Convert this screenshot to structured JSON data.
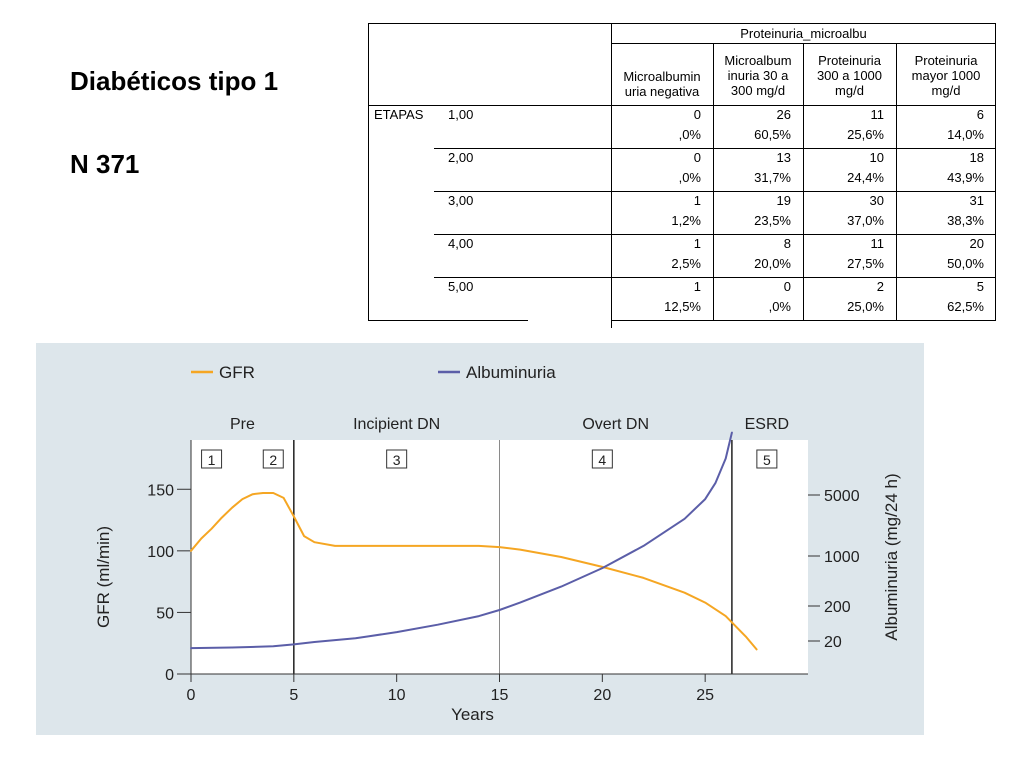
{
  "title": {
    "line1": "Diabéticos tipo 1",
    "line2": "N 371"
  },
  "table": {
    "group_header": "Proteinuria_microalbu",
    "columns": [
      "Microalbumin\nuria negativa",
      "Microalbum\ninuria 30 a\n300 mg/d",
      "Proteinuria\n300 a 1000\nmg/d",
      "Proteinuria\nmayor 1000\nmg/d"
    ],
    "row_var": "ETAPAS",
    "rows": [
      {
        "stage": "1,00",
        "counts": [
          "0",
          "26",
          "11",
          "6"
        ],
        "percents": [
          ",0%",
          "60,5%",
          "25,6%",
          "14,0%"
        ]
      },
      {
        "stage": "2,00",
        "counts": [
          "0",
          "13",
          "10",
          "18"
        ],
        "percents": [
          ",0%",
          "31,7%",
          "24,4%",
          "43,9%"
        ]
      },
      {
        "stage": "3,00",
        "counts": [
          "1",
          "19",
          "30",
          "31"
        ],
        "percents": [
          "1,2%",
          "23,5%",
          "37,0%",
          "38,3%"
        ]
      },
      {
        "stage": "4,00",
        "counts": [
          "1",
          "8",
          "11",
          "20"
        ],
        "percents": [
          "2,5%",
          "20,0%",
          "27,5%",
          "50,0%"
        ]
      },
      {
        "stage": "5,00",
        "counts": [
          "1",
          "0",
          "2",
          "5"
        ],
        "percents": [
          "12,5%",
          ",0%",
          "25,0%",
          "62,5%"
        ]
      }
    ]
  },
  "chart_data": {
    "type": "line",
    "xlabel": "Years",
    "ylabel_left": "GFR (ml/min)",
    "ylabel_right": "Albuminuria (mg/24 h)",
    "xlim": [
      0,
      30
    ],
    "ylim_left": [
      0,
      190
    ],
    "x_ticks": [
      "0",
      "5",
      "10",
      "15",
      "20",
      "25"
    ],
    "y_ticks_left": [
      "0",
      "50",
      "100",
      "150"
    ],
    "y_ticks_right": [
      "20",
      "200",
      "1000",
      "5000"
    ],
    "legend": {
      "position": "top-left",
      "items": [
        "GFR",
        "Albuminuria"
      ]
    },
    "colors": {
      "gfr": "#f5a623",
      "albuminuria": "#5b5ea8",
      "background": "#dde6eb"
    },
    "phases": [
      {
        "label": "Pre",
        "x_start": 0,
        "x_end": 5
      },
      {
        "label": "Incipient DN",
        "x_start": 5,
        "x_end": 15
      },
      {
        "label": "Overt DN",
        "x_start": 15,
        "x_end": 26.3
      },
      {
        "label": "ESRD",
        "x_start": 26.3,
        "x_end": 30
      }
    ],
    "stage_boxes": [
      {
        "label": "1",
        "x": 1
      },
      {
        "label": "2",
        "x": 4
      },
      {
        "label": "3",
        "x": 10
      },
      {
        "label": "4",
        "x": 20
      },
      {
        "label": "5",
        "x": 28
      }
    ],
    "series": [
      {
        "name": "GFR",
        "axis": "left",
        "x": [
          0,
          0.5,
          1,
          1.5,
          2,
          2.5,
          3,
          3.5,
          4,
          4.5,
          5,
          5.5,
          6,
          7,
          8,
          10,
          12,
          14,
          15,
          16,
          18,
          20,
          22,
          24,
          25,
          26,
          27,
          27.5
        ],
        "y": [
          100,
          110,
          118,
          127,
          135,
          142,
          146,
          147,
          147,
          143,
          128,
          112,
          107,
          104,
          104,
          104,
          104,
          104,
          103,
          101,
          95,
          87,
          78,
          66,
          58,
          47,
          30,
          20
        ]
      },
      {
        "name": "Albuminuria",
        "axis": "left",
        "x": [
          0,
          2,
          4,
          5,
          6,
          8,
          10,
          12,
          14,
          15,
          16,
          18,
          20,
          22,
          24,
          25,
          25.5,
          26,
          26.3
        ],
        "y": [
          21,
          21.5,
          22.5,
          24,
          26,
          29,
          34,
          40,
          47,
          52,
          58,
          71,
          86,
          104,
          126,
          142,
          155,
          175,
          196
        ]
      }
    ]
  }
}
